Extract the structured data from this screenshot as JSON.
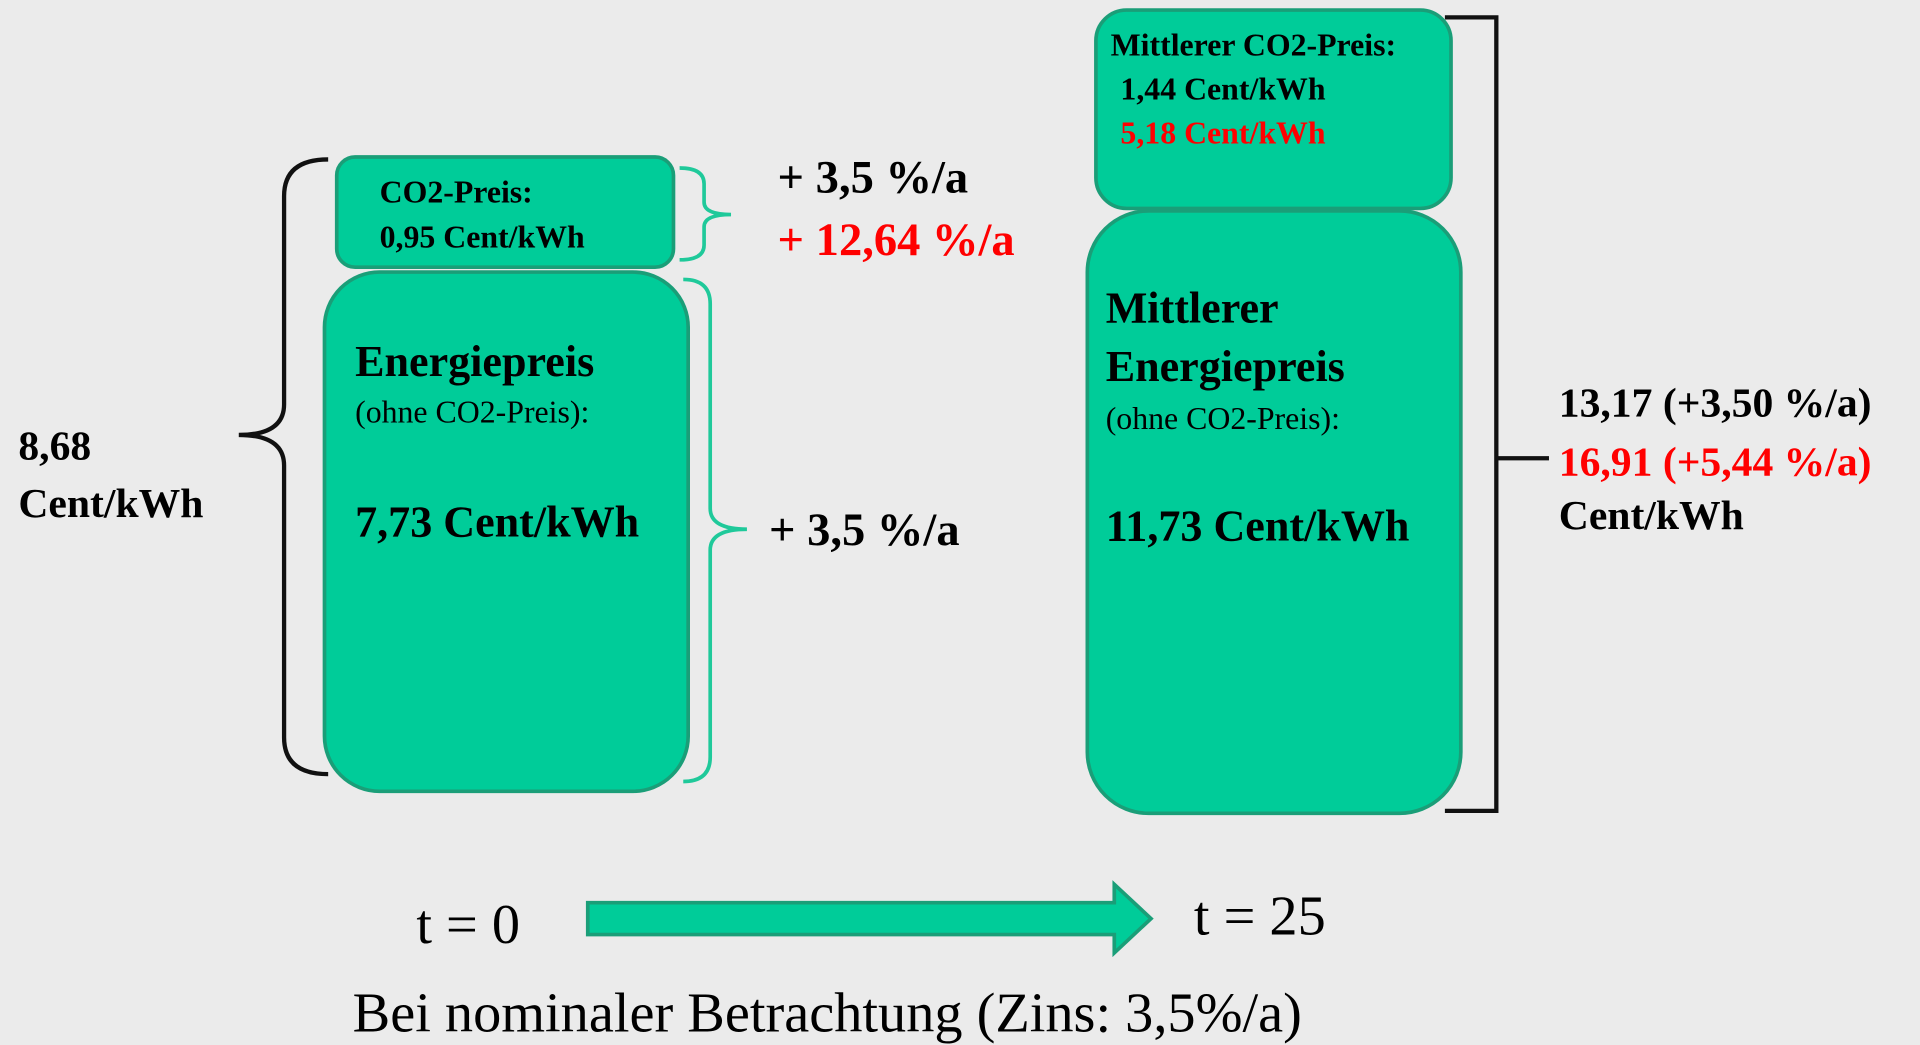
{
  "left": {
    "total_value": "8,68",
    "total_unit": "Cent/kWh",
    "co2_box": {
      "line1": "CO2-Preis:",
      "line2": "0,95 Cent/kWh"
    },
    "energy_box": {
      "title": "Energiepreis",
      "note": "(ohne CO2-Preis):",
      "value": "7,73 Cent/kWh"
    },
    "co2_growth": {
      "black": "+ 3,5 %/a",
      "red": "+ 12,64 %/a"
    },
    "energy_growth": "+ 3,5 %/a"
  },
  "right": {
    "co2_box": {
      "line1": "Mittlerer CO2-Preis:",
      "line2": "1,44 Cent/kWh",
      "line3": "5,18 Cent/kWh"
    },
    "energy_box": {
      "title1": "Mittlerer",
      "title2": "Energiepreis",
      "note": "(ohne CO2-Preis):",
      "value": "11,73 Cent/kWh"
    },
    "total": {
      "black": "13,17 (+3,50 %/a)",
      "red": "16,91 (+5,44 %/a)",
      "unit": "Cent/kWh"
    }
  },
  "timeline": {
    "start": "t = 0",
    "end": "t = 25"
  },
  "footer": "Bei nominaler Betrachtung (Zins: 3,5%/a)"
}
